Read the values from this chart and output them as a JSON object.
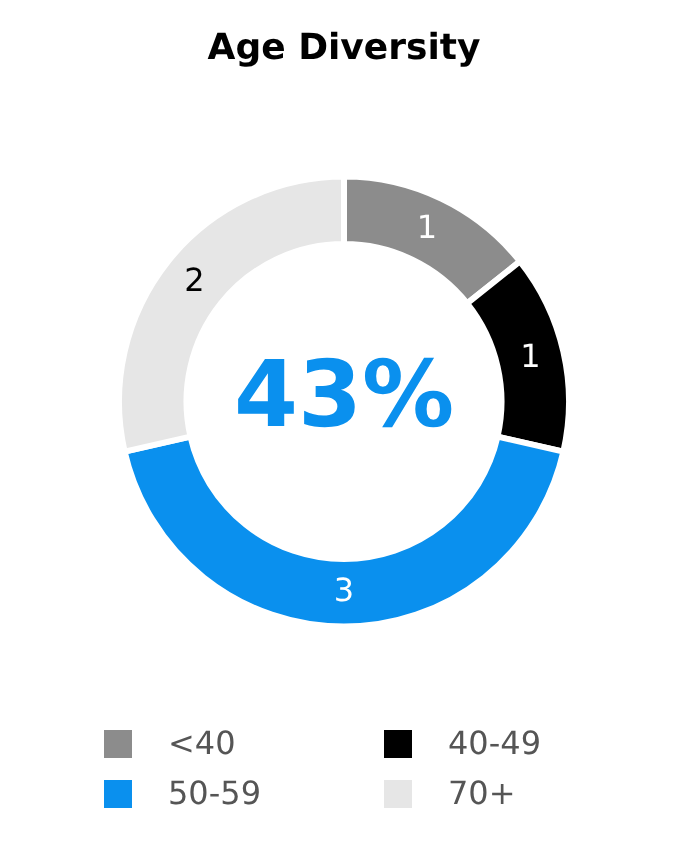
{
  "chart_data": {
    "type": "donut",
    "title": "Age Diversity",
    "categories": [
      "<40",
      "40-49",
      "50-59",
      "70+"
    ],
    "values": [
      1,
      1,
      3,
      2
    ],
    "colors": [
      "#8c8c8c",
      "#000000",
      "#0a90ee",
      "#e6e6e6"
    ],
    "data_labels": true,
    "legend": "bottom",
    "annotations": [
      "43%"
    ]
  }
}
